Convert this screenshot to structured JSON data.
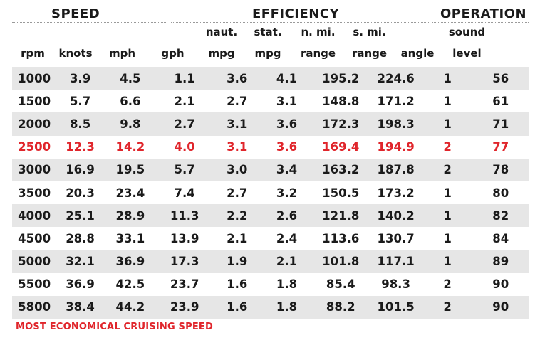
{
  "groups": {
    "speed": "SPEED",
    "efficiency": "EFFICIENCY",
    "operation": "OPERATION"
  },
  "columns": [
    {
      "top": "",
      "bottom": "rpm"
    },
    {
      "top": "",
      "bottom": "knots"
    },
    {
      "top": "",
      "bottom": "mph"
    },
    {
      "top": "",
      "bottom": "gph"
    },
    {
      "top": "naut.",
      "bottom": "mpg"
    },
    {
      "top": "stat.",
      "bottom": "mpg"
    },
    {
      "top": "n. mi.",
      "bottom": "range"
    },
    {
      "top": "s. mi.",
      "bottom": "range"
    },
    {
      "top": "",
      "bottom": "angle"
    },
    {
      "top": "sound",
      "bottom": "level"
    }
  ],
  "rows": [
    [
      "1000",
      "3.9",
      "4.5",
      "1.1",
      "3.6",
      "4.1",
      "195.2",
      "224.6",
      "1",
      "56"
    ],
    [
      "1500",
      "5.7",
      "6.6",
      "2.1",
      "2.7",
      "3.1",
      "148.8",
      "171.2",
      "1",
      "61"
    ],
    [
      "2000",
      "8.5",
      "9.8",
      "2.7",
      "3.1",
      "3.6",
      "172.3",
      "198.3",
      "1",
      "71"
    ],
    [
      "2500",
      "12.3",
      "14.2",
      "4.0",
      "3.1",
      "3.6",
      "169.4",
      "194.9",
      "2",
      "77"
    ],
    [
      "3000",
      "16.9",
      "19.5",
      "5.7",
      "3.0",
      "3.4",
      "163.2",
      "187.8",
      "2",
      "78"
    ],
    [
      "3500",
      "20.3",
      "23.4",
      "7.4",
      "2.7",
      "3.2",
      "150.5",
      "173.2",
      "1",
      "80"
    ],
    [
      "4000",
      "25.1",
      "28.9",
      "11.3",
      "2.2",
      "2.6",
      "121.8",
      "140.2",
      "1",
      "82"
    ],
    [
      "4500",
      "28.8",
      "33.1",
      "13.9",
      "2.1",
      "2.4",
      "113.6",
      "130.7",
      "1",
      "84"
    ],
    [
      "5000",
      "32.1",
      "36.9",
      "17.3",
      "1.9",
      "2.1",
      "101.8",
      "117.1",
      "1",
      "89"
    ],
    [
      "5500",
      "36.9",
      "42.5",
      "23.7",
      "1.6",
      "1.8",
      "85.4",
      "98.3",
      "2",
      "90"
    ],
    [
      "5800",
      "38.4",
      "44.2",
      "23.9",
      "1.6",
      "1.8",
      "88.2",
      "101.5",
      "2",
      "90"
    ]
  ],
  "highlight_row": 3,
  "footnote": "MOST ECONOMICAL CRUISING SPEED",
  "colors": {
    "highlight": "#e0252b",
    "row_shade": "#e6e6e6",
    "text": "#1a1a1a"
  }
}
